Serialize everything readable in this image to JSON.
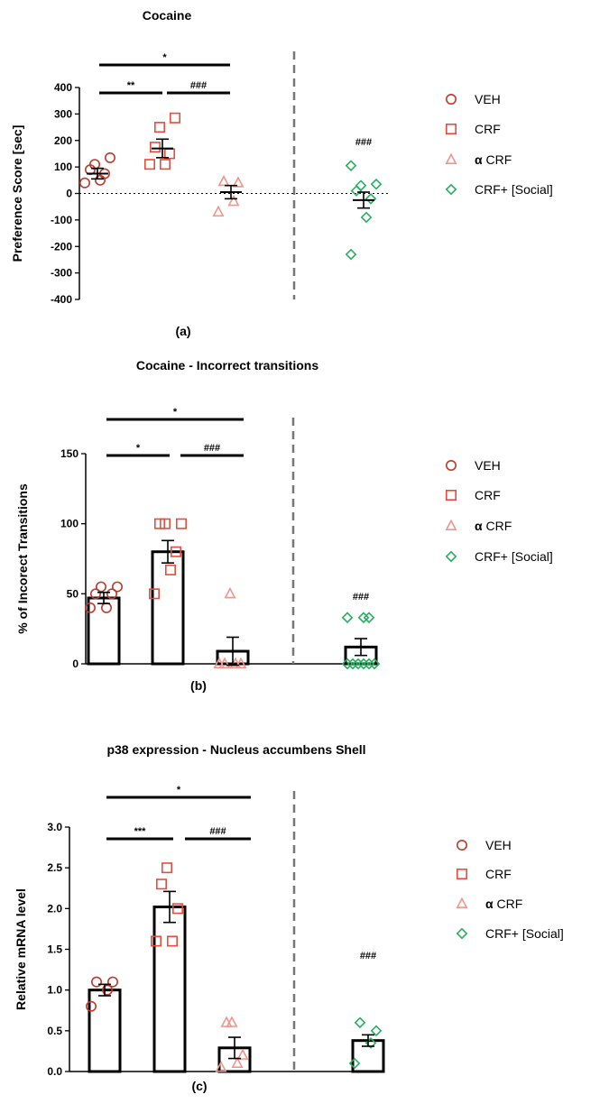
{
  "legend": {
    "items": [
      {
        "label": "VEH",
        "marker": "circle",
        "color": "#c0392b"
      },
      {
        "label": "CRF",
        "marker": "square",
        "color": "#e74c3c"
      },
      {
        "label_symbol": "α",
        "label": " CRF",
        "marker": "triangle",
        "color": "#f1948a"
      },
      {
        "label": "CRF+ [Social]",
        "marker": "diamond",
        "color": "#27ae60"
      }
    ]
  },
  "colors": {
    "veh": "#c0392b",
    "crf": "#e74c3c",
    "acrf": "#f1948a",
    "social": "#27ae60",
    "bar": "#000000",
    "divider": "#777777"
  },
  "chart_data": [
    {
      "type": "scatter",
      "title": "Cocaine",
      "caption": "(a)",
      "ylabel": "Preference Score [sec]",
      "ylim": [
        -400,
        400
      ],
      "yticks": [
        400,
        300,
        200,
        100,
        0,
        -100,
        -200,
        -300,
        -400
      ],
      "zero_line": "dotted",
      "groups": [
        {
          "name": "VEH",
          "mean": 75,
          "sem": 20,
          "points": [
            40,
            50,
            75,
            90,
            110,
            135
          ]
        },
        {
          "name": "CRF",
          "mean": 170,
          "sem": 35,
          "points": [
            110,
            110,
            150,
            175,
            250,
            285
          ]
        },
        {
          "name": "α CRF",
          "mean": 5,
          "sem": 25,
          "points": [
            -70,
            -30,
            40,
            45
          ]
        },
        {
          "name": "CRF+ [Social]",
          "mean": -25,
          "sem": 30,
          "points": [
            -230,
            -90,
            -20,
            10,
            30,
            35,
            105
          ]
        }
      ],
      "comparisons": [
        {
          "from": 0,
          "to": 2,
          "label": "*"
        },
        {
          "from": 0,
          "to": 1,
          "label": "**"
        },
        {
          "from": 1,
          "to": 2,
          "label": "###"
        }
      ],
      "group_annotations": [
        {
          "group": 3,
          "label": "###"
        }
      ]
    },
    {
      "type": "bar",
      "title": "Cocaine - Incorrect transitions",
      "caption": "(b)",
      "ylabel": "% of Incorect Transitions",
      "ylim": [
        0,
        150
      ],
      "yticks": [
        150,
        100,
        50,
        0
      ],
      "groups": [
        {
          "name": "VEH",
          "mean": 47,
          "sem": 4,
          "points": [
            40,
            40,
            50,
            50,
            55,
            55
          ]
        },
        {
          "name": "CRF",
          "mean": 80,
          "sem": 8,
          "points": [
            50,
            67,
            80,
            100,
            100,
            100
          ]
        },
        {
          "name": "α CRF",
          "mean": 9,
          "sem": 10,
          "points": [
            0,
            0,
            0,
            0,
            50
          ]
        },
        {
          "name": "CRF+ [Social]",
          "mean": 12,
          "sem": 6,
          "points": [
            0,
            0,
            0,
            0,
            0,
            0,
            33,
            33,
            33
          ]
        }
      ],
      "comparisons": [
        {
          "from": 0,
          "to": 2,
          "label": "*"
        },
        {
          "from": 0,
          "to": 1,
          "label": "*"
        },
        {
          "from": 1,
          "to": 2,
          "label": "###"
        }
      ],
      "group_annotations": [
        {
          "group": 3,
          "label": "###"
        }
      ]
    },
    {
      "type": "bar",
      "title": "p38 expression - Nucleus accumbens Shell",
      "caption": "(c)",
      "ylabel": "Relative mRNA level",
      "ylim": [
        0,
        3.0
      ],
      "yticks": [
        "3.0",
        "2.5",
        "2.0",
        "1.5",
        "1.0",
        "0.5",
        "0.0"
      ],
      "groups": [
        {
          "name": "VEH",
          "mean": 1.0,
          "sem": 0.07,
          "points": [
            0.8,
            1.0,
            1.1,
            1.1
          ]
        },
        {
          "name": "CRF",
          "mean": 2.02,
          "sem": 0.19,
          "points": [
            1.6,
            1.6,
            2.0,
            2.3,
            2.5
          ]
        },
        {
          "name": "α CRF",
          "mean": 0.29,
          "sem": 0.13,
          "points": [
            0.05,
            0.1,
            0.2,
            0.6,
            0.6
          ]
        },
        {
          "name": "CRF+ [Social]",
          "mean": 0.38,
          "sem": 0.07,
          "points": [
            0.1,
            0.35,
            0.5,
            0.6
          ]
        }
      ],
      "comparisons": [
        {
          "from": 0,
          "to": 2,
          "label": "*"
        },
        {
          "from": 0,
          "to": 1,
          "label": "***"
        },
        {
          "from": 1,
          "to": 2,
          "label": "###"
        }
      ],
      "group_annotations": [
        {
          "group": 3,
          "label": "###"
        }
      ]
    }
  ]
}
